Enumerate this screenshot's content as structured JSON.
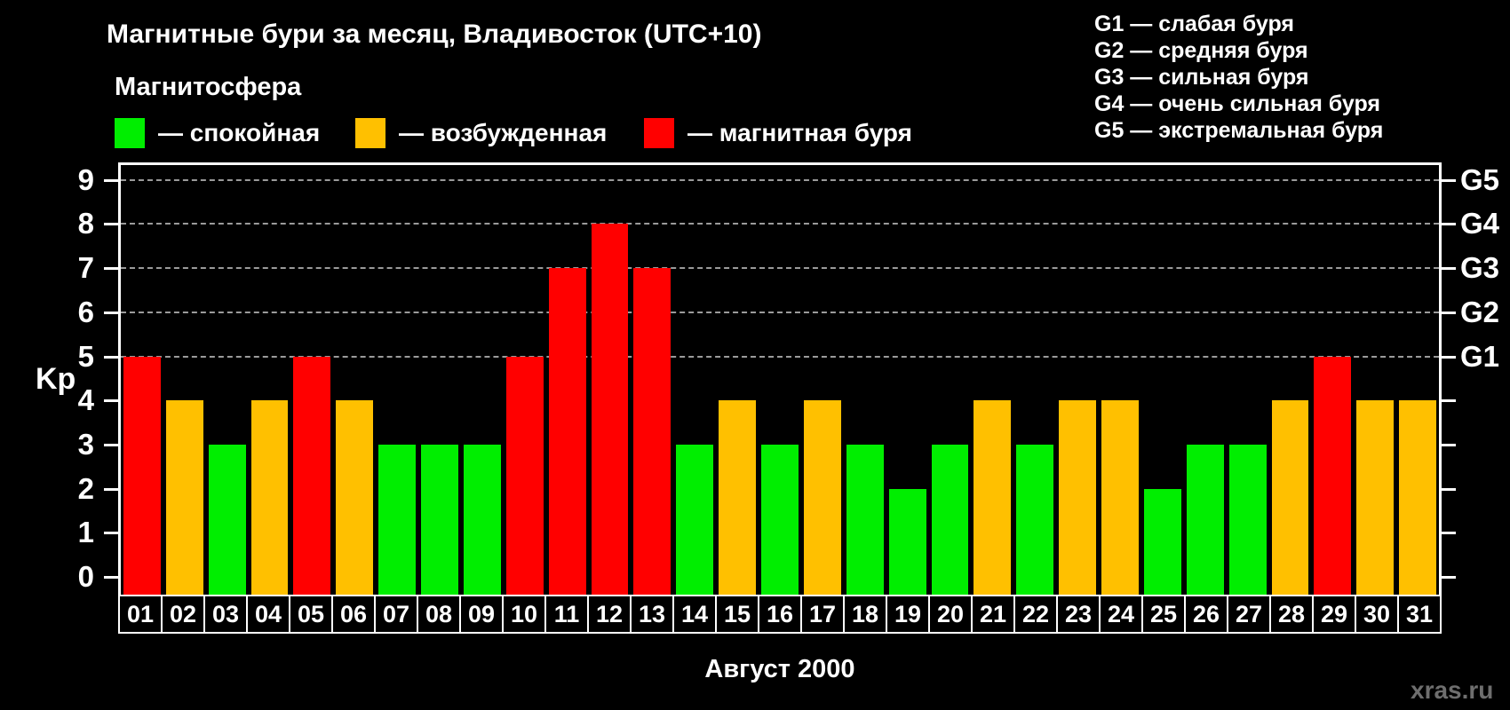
{
  "header": {
    "title": "Магнитные бури за месяц, Владивосток (UTC+10)",
    "subtitle": "Магнитосфера"
  },
  "legend": {
    "items": [
      {
        "state": "quiet",
        "label": "— спокойная"
      },
      {
        "state": "excited",
        "label": "— возбужденная"
      },
      {
        "state": "storm",
        "label": "— магнитная буря"
      }
    ]
  },
  "g_scale_legend": {
    "lines": [
      "G1 — слабая буря",
      "G2 — средняя буря",
      "G3 — сильная буря",
      "G4 — очень сильная буря",
      "G5 — экстремальная буря"
    ]
  },
  "colors": {
    "quiet": "#00ee00",
    "excited": "#ffc000",
    "storm": "#ff0000",
    "background": "#000000",
    "text": "#ffffff",
    "grid": "#9b9b9b",
    "watermark": "#6e6e6e"
  },
  "axis": {
    "kp_label": "Kp"
  },
  "footer": {
    "month_label": "Август 2000",
    "watermark": "xras.ru"
  },
  "chart_data": {
    "type": "bar",
    "title": "Магнитные бури за месяц, Владивосток (UTC+10)",
    "xlabel": "Август 2000",
    "ylabel": "Kp",
    "ylim": [
      0,
      9
    ],
    "grid": "dashed horizontal at G-storm levels",
    "legend_position": "top-left",
    "yticks": [
      0,
      1,
      2,
      3,
      4,
      5,
      6,
      7,
      8,
      9
    ],
    "gridlines_at": [
      5,
      6,
      7,
      8,
      9
    ],
    "right_axis_labels": [
      {
        "value": 5,
        "label": "G1"
      },
      {
        "value": 6,
        "label": "G2"
      },
      {
        "value": 7,
        "label": "G3"
      },
      {
        "value": 8,
        "label": "G4"
      },
      {
        "value": 9,
        "label": "G5"
      }
    ],
    "categories": [
      "01",
      "02",
      "03",
      "04",
      "05",
      "06",
      "07",
      "08",
      "09",
      "10",
      "11",
      "12",
      "13",
      "14",
      "15",
      "16",
      "17",
      "18",
      "19",
      "20",
      "21",
      "22",
      "23",
      "24",
      "25",
      "26",
      "27",
      "28",
      "29",
      "30",
      "31"
    ],
    "values": [
      5,
      4,
      3,
      4,
      5,
      4,
      3,
      3,
      3,
      5,
      7,
      8,
      7,
      3,
      4,
      3,
      4,
      3,
      2,
      3,
      4,
      3,
      4,
      4,
      2,
      3,
      3,
      4,
      5,
      4,
      4
    ],
    "days": [
      {
        "day": "01",
        "kp": 5,
        "state": "storm"
      },
      {
        "day": "02",
        "kp": 4,
        "state": "excited"
      },
      {
        "day": "03",
        "kp": 3,
        "state": "quiet"
      },
      {
        "day": "04",
        "kp": 4,
        "state": "excited"
      },
      {
        "day": "05",
        "kp": 5,
        "state": "storm"
      },
      {
        "day": "06",
        "kp": 4,
        "state": "excited"
      },
      {
        "day": "07",
        "kp": 3,
        "state": "quiet"
      },
      {
        "day": "08",
        "kp": 3,
        "state": "quiet"
      },
      {
        "day": "09",
        "kp": 3,
        "state": "quiet"
      },
      {
        "day": "10",
        "kp": 5,
        "state": "storm"
      },
      {
        "day": "11",
        "kp": 7,
        "state": "storm"
      },
      {
        "day": "12",
        "kp": 8,
        "state": "storm"
      },
      {
        "day": "13",
        "kp": 7,
        "state": "storm"
      },
      {
        "day": "14",
        "kp": 3,
        "state": "quiet"
      },
      {
        "day": "15",
        "kp": 4,
        "state": "excited"
      },
      {
        "day": "16",
        "kp": 3,
        "state": "quiet"
      },
      {
        "day": "17",
        "kp": 4,
        "state": "excited"
      },
      {
        "day": "18",
        "kp": 3,
        "state": "quiet"
      },
      {
        "day": "19",
        "kp": 2,
        "state": "quiet"
      },
      {
        "day": "20",
        "kp": 3,
        "state": "quiet"
      },
      {
        "day": "21",
        "kp": 4,
        "state": "excited"
      },
      {
        "day": "22",
        "kp": 3,
        "state": "quiet"
      },
      {
        "day": "23",
        "kp": 4,
        "state": "excited"
      },
      {
        "day": "24",
        "kp": 4,
        "state": "excited"
      },
      {
        "day": "25",
        "kp": 2,
        "state": "quiet"
      },
      {
        "day": "26",
        "kp": 3,
        "state": "quiet"
      },
      {
        "day": "27",
        "kp": 3,
        "state": "quiet"
      },
      {
        "day": "28",
        "kp": 4,
        "state": "excited"
      },
      {
        "day": "29",
        "kp": 5,
        "state": "storm"
      },
      {
        "day": "30",
        "kp": 4,
        "state": "excited"
      },
      {
        "day": "31",
        "kp": 4,
        "state": "excited"
      }
    ]
  }
}
